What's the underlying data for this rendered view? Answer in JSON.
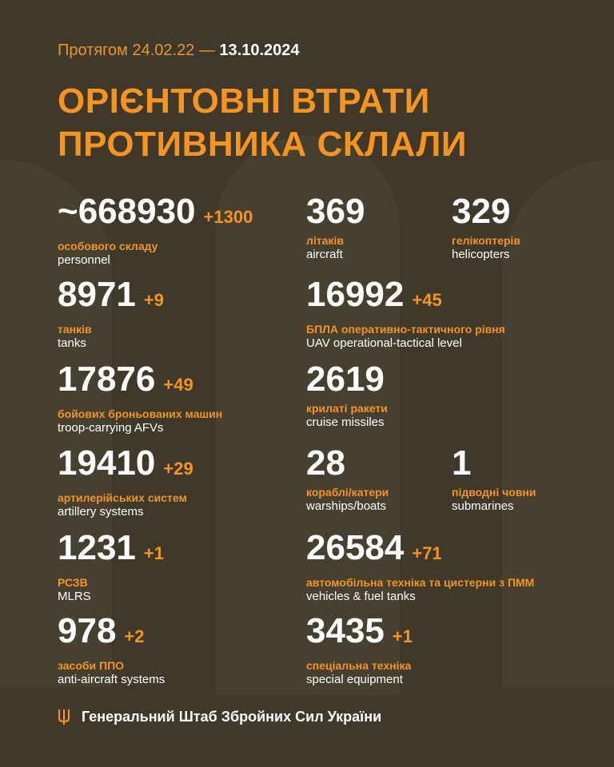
{
  "colors": {
    "background": "#3e392b",
    "accent": "#f7941d",
    "text": "#ffffff"
  },
  "header": {
    "period_prefix": "Протягом 24.02.22 —",
    "period_end": "13.10.2024",
    "title_line1": "ОРІЄНТОВНІ ВТРАТИ",
    "title_line2": "ПРОТИВНИКА СКЛАЛИ"
  },
  "items": [
    {
      "value": "~668930",
      "delta": "+1300",
      "ua": "особового складу",
      "en": "personnel"
    },
    {
      "value": "369",
      "delta": "",
      "ua": "літаків",
      "en": "aircraft"
    },
    {
      "value": "329",
      "delta": "",
      "ua": "гелікоптерів",
      "en": "helicopters"
    },
    {
      "value": "8971",
      "delta": "+9",
      "ua": "танків",
      "en": "tanks"
    },
    {
      "value": "16992",
      "delta": "+45",
      "ua": "БПЛА оперативно-тактичного рівня",
      "en": "UAV operational-tactical level"
    },
    {
      "value": "17876",
      "delta": "+49",
      "ua": "бойових броньованих машин",
      "en": "troop-carrying AFVs"
    },
    {
      "value": "2619",
      "delta": "",
      "ua": "крилаті ракети",
      "en": "cruise missiles"
    },
    {
      "value": "19410",
      "delta": "+29",
      "ua": "артилерійських систем",
      "en": "artillery systems"
    },
    {
      "value": "28",
      "delta": "",
      "ua": "кораблі/катери",
      "en": "warships/boats"
    },
    {
      "value": "1",
      "delta": "",
      "ua": "підводні човни",
      "en": "submarines"
    },
    {
      "value": "1231",
      "delta": "+1",
      "ua": "РСЗВ",
      "en": "MLRS"
    },
    {
      "value": "26584",
      "delta": "+71",
      "ua": "автомобільна техніка та цистерни з ПММ",
      "en": "vehicles & fuel tanks"
    },
    {
      "value": "978",
      "delta": "+2",
      "ua": "засоби ППО",
      "en": "anti-aircraft systems"
    },
    {
      "value": "3435",
      "delta": "+1",
      "ua": "спеціальна техніка",
      "en": "special equipment"
    }
  ],
  "footer": {
    "icon": "trident-icon",
    "text": "Генеральний Штаб Збройних Сил України"
  }
}
